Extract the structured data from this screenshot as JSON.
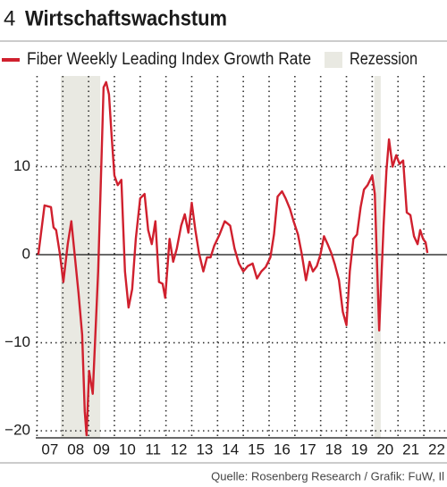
{
  "chart_data": {
    "type": "line",
    "figure_number": "4",
    "title": "Wirtschaftswachstum",
    "source": "Quelle: Rosenberg Research / Grafik: FuW, Il",
    "recession_label": "Rezession",
    "recession_color": "#e9e9e2",
    "recessions": [
      [
        2007.92,
        2009.45
      ],
      [
        2020.08,
        2020.33
      ]
    ],
    "xlim": [
      2006.95,
      2022.9
    ],
    "ylim": [
      -20.8,
      20.3
    ],
    "xticks": [
      {
        "value": 2007,
        "label": "07"
      },
      {
        "value": 2008,
        "label": "08"
      },
      {
        "value": 2009,
        "label": "09"
      },
      {
        "value": 2010,
        "label": "10"
      },
      {
        "value": 2011,
        "label": "11"
      },
      {
        "value": 2012,
        "label": "12"
      },
      {
        "value": 2013,
        "label": "13"
      },
      {
        "value": 2014,
        "label": "14"
      },
      {
        "value": 2015,
        "label": "15"
      },
      {
        "value": 2016,
        "label": "16"
      },
      {
        "value": 2017,
        "label": "17"
      },
      {
        "value": 2018,
        "label": "18"
      },
      {
        "value": 2019,
        "label": "19"
      },
      {
        "value": 2020,
        "label": "20"
      },
      {
        "value": 2021,
        "label": "21"
      },
      {
        "value": 2022,
        "label": "22"
      }
    ],
    "yticks": [
      {
        "value": -20,
        "label": "−20"
      },
      {
        "value": -10,
        "label": "−10"
      },
      0,
      10
    ],
    "grid": true,
    "x": [
      2007.05,
      2007.29,
      2007.54,
      2007.64,
      2007.74,
      2007.88,
      2008.02,
      2008.19,
      2008.33,
      2008.47,
      2008.61,
      2008.75,
      2008.85,
      2008.92,
      2009.02,
      2009.16,
      2009.37,
      2009.47,
      2009.58,
      2009.68,
      2009.79,
      2009.89,
      2010.0,
      2010.13,
      2010.27,
      2010.41,
      2010.55,
      2010.69,
      2010.83,
      2011.0,
      2011.17,
      2011.31,
      2011.45,
      2011.59,
      2011.73,
      2011.87,
      2011.97,
      2012.14,
      2012.28,
      2012.42,
      2012.59,
      2012.73,
      2012.87,
      2013.0,
      2013.14,
      2013.28,
      2013.45,
      2013.59,
      2013.73,
      2013.87,
      2014.08,
      2014.28,
      2014.49,
      2014.66,
      2014.83,
      2015.0,
      2015.17,
      2015.36,
      2015.53,
      2015.7,
      2015.87,
      2016.05,
      2016.19,
      2016.33,
      2016.5,
      2016.64,
      2016.81,
      2016.95,
      2017.12,
      2017.26,
      2017.43,
      2017.57,
      2017.7,
      2017.85,
      2017.99,
      2018.13,
      2018.27,
      2018.41,
      2018.55,
      2018.71,
      2018.86,
      2019.0,
      2019.13,
      2019.27,
      2019.41,
      2019.55,
      2019.68,
      2019.82,
      2020.0,
      2020.1,
      2020.27,
      2020.44,
      2020.55,
      2020.65,
      2020.79,
      2020.93,
      2021.06,
      2021.2,
      2021.34,
      2021.48,
      2021.62,
      2021.76,
      2021.86,
      2021.97,
      2022.07,
      2022.14
    ],
    "series": [
      {
        "name": "Fiber Weekly Leading Index Growth Rate",
        "color": "#d0202e",
        "values": [
          0,
          5.6,
          5.4,
          3.1,
          2.8,
          0.2,
          -3.1,
          1.2,
          3.8,
          -0.3,
          -4.4,
          -9.1,
          -17.8,
          -20.5,
          -13.2,
          -15.8,
          -1.9,
          7.9,
          19.0,
          19.6,
          18.2,
          13.6,
          9.0,
          7.9,
          8.5,
          -1.9,
          -6.0,
          -3.9,
          1.8,
          6.4,
          6.9,
          2.8,
          1.2,
          3.8,
          -3.1,
          -3.3,
          -4.9,
          1.8,
          -0.8,
          0.7,
          3.3,
          4.6,
          2.5,
          5.9,
          2.8,
          0.2,
          -1.9,
          -0.3,
          -0.3,
          1.0,
          2.3,
          3.8,
          3.3,
          0.7,
          -1.0,
          -1.9,
          -1.3,
          -1.0,
          -2.7,
          -1.9,
          -1.4,
          -0.3,
          2.3,
          6.6,
          7.2,
          6.4,
          5.2,
          3.8,
          2.3,
          0.2,
          -2.9,
          -0.8,
          -1.9,
          -1.3,
          0,
          2.1,
          1.2,
          0.2,
          -1.1,
          -2.9,
          -6.5,
          -8.0,
          -1.9,
          1.8,
          2.3,
          5.4,
          7.4,
          7.9,
          9.0,
          6.9,
          -8.6,
          3.3,
          9.5,
          13.1,
          10.0,
          11.3,
          10.3,
          10.7,
          4.8,
          4.5,
          2.1,
          1.2,
          2.8,
          1.8,
          1.4,
          0.2
        ]
      }
    ]
  }
}
